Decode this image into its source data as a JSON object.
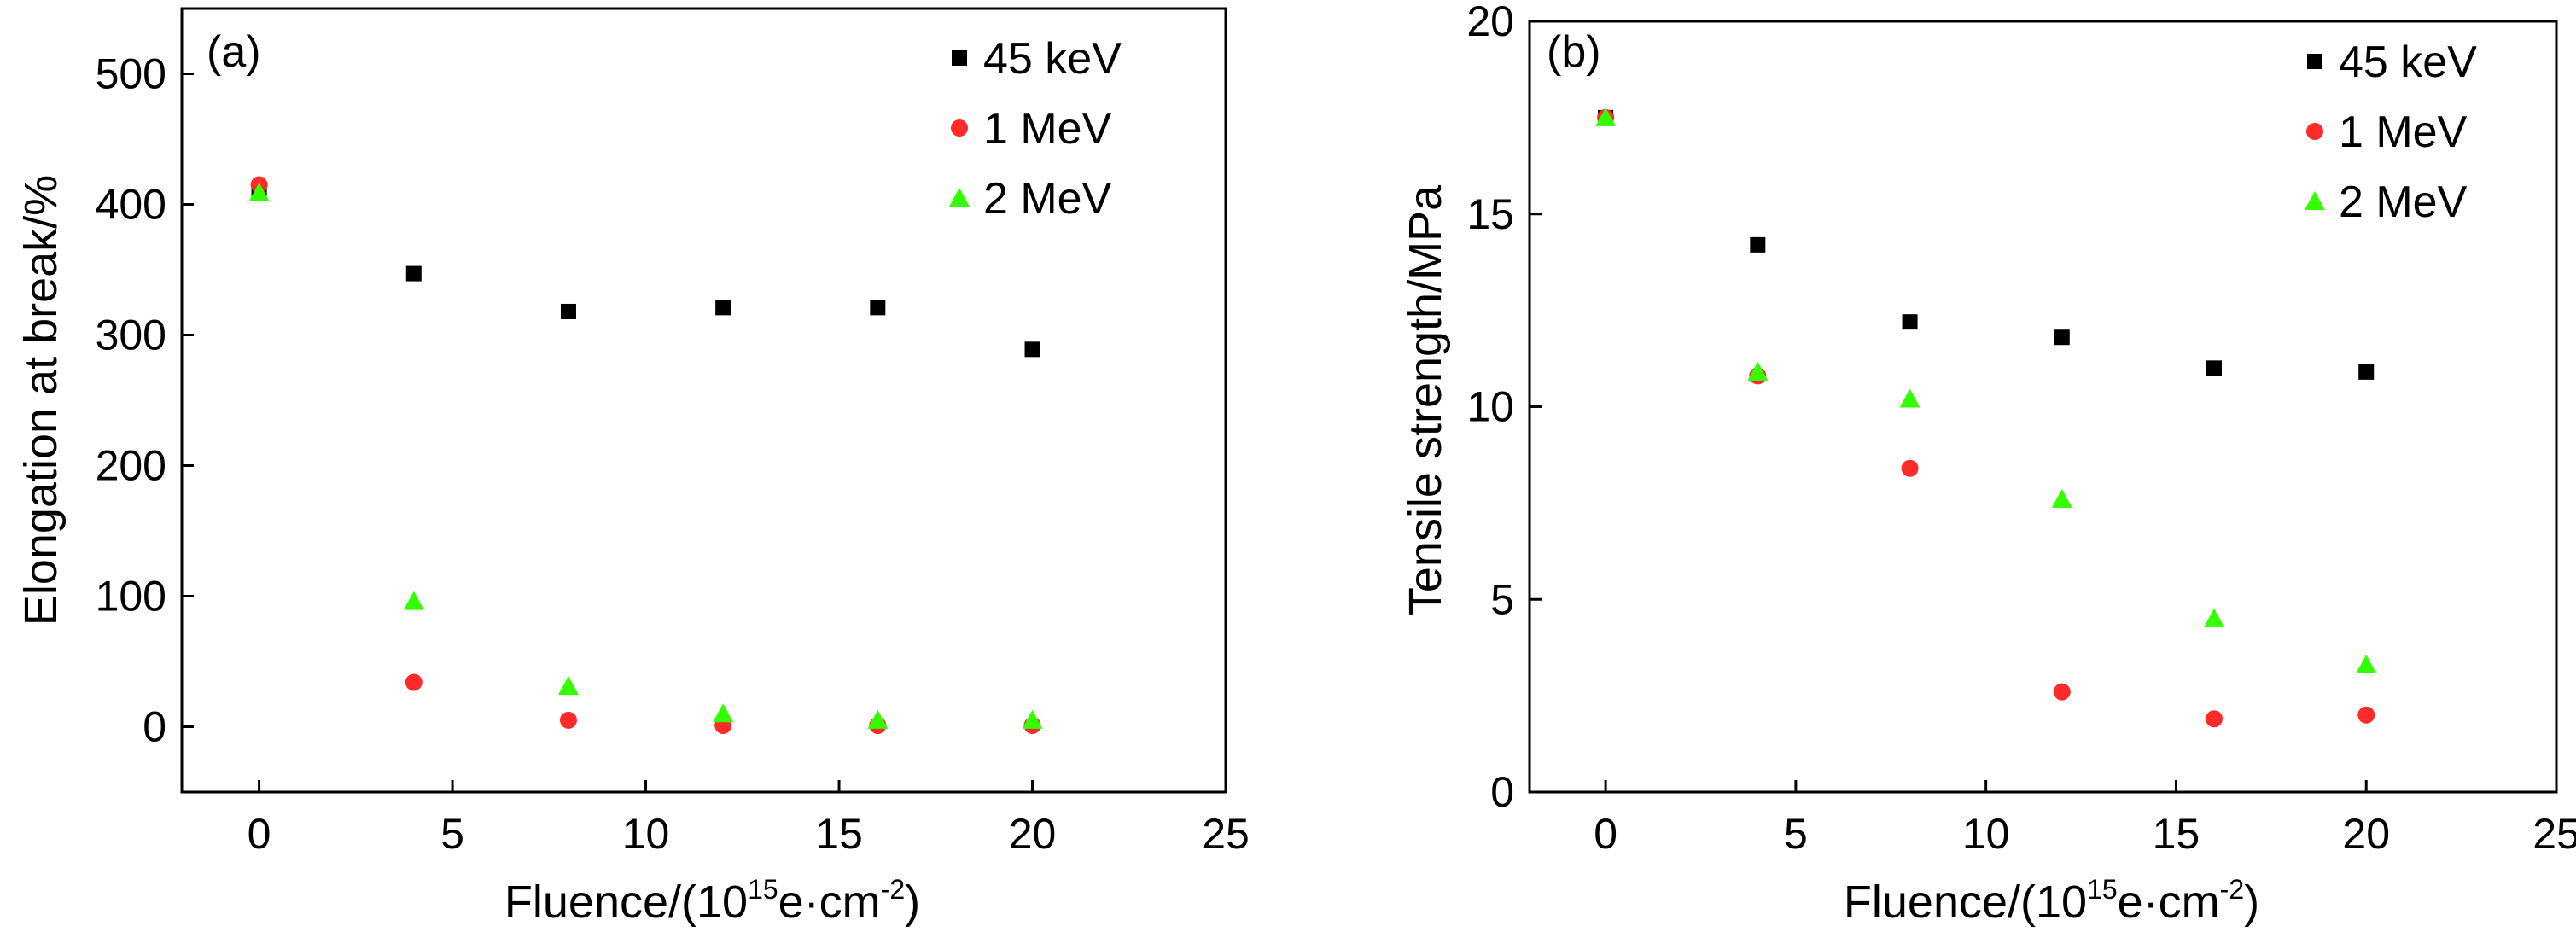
{
  "chart_data": [
    {
      "type": "scatter",
      "panel_label": "(a)",
      "xlabel": {
        "main": "Fluence/(10",
        "sup": "15",
        "unit": "e·cm",
        "unit_sup": "-2",
        "close": ")"
      },
      "ylabel": "Elongation at break/%",
      "xlim": [
        -2,
        25
      ],
      "ylim": [
        -50,
        550
      ],
      "xticks": [
        0,
        5,
        10,
        15,
        20,
        25
      ],
      "yticks": [
        0,
        100,
        200,
        300,
        400,
        500
      ],
      "grid": false,
      "legend_position": "top-right",
      "series": [
        {
          "name": "45 keV",
          "marker": "square",
          "color": "#000000",
          "x": [
            0,
            4,
            8,
            12,
            16,
            20
          ],
          "y": [
            412,
            347,
            318,
            321,
            321,
            289
          ]
        },
        {
          "name": "1 MeV",
          "marker": "circle",
          "color": "#ff2a2a",
          "x": [
            0,
            4,
            8,
            12,
            16,
            20
          ],
          "y": [
            415,
            34,
            5,
            1,
            1,
            1
          ]
        },
        {
          "name": "2 MeV",
          "marker": "triangle",
          "color": "#33ff00",
          "x": [
            0,
            4,
            8,
            12,
            16,
            20
          ],
          "y": [
            409,
            96,
            31,
            10,
            5,
            5
          ]
        }
      ]
    },
    {
      "type": "scatter",
      "panel_label": "(b)",
      "xlabel": {
        "main": "Fluence/(10",
        "sup": "15",
        "unit": "e·cm",
        "unit_sup": "-2",
        "close": ")"
      },
      "ylabel": "Tensile strength/MPa",
      "xlim": [
        -2,
        25
      ],
      "ylim": [
        0,
        20
      ],
      "xticks": [
        0,
        5,
        10,
        15,
        20,
        25
      ],
      "yticks": [
        0,
        5,
        10,
        15,
        20
      ],
      "grid": false,
      "legend_position": "top-right",
      "series": [
        {
          "name": "45 keV",
          "marker": "square",
          "color": "#000000",
          "x": [
            0,
            4,
            8,
            12,
            16,
            20
          ],
          "y": [
            17.5,
            14.2,
            12.2,
            11.8,
            11.0,
            10.9
          ]
        },
        {
          "name": "1 MeV",
          "marker": "circle",
          "color": "#ff2a2a",
          "x": [
            0,
            4,
            8,
            12,
            16,
            20
          ],
          "y": [
            17.5,
            10.8,
            8.4,
            2.6,
            1.9,
            2.0
          ]
        },
        {
          "name": "2 MeV",
          "marker": "triangle",
          "color": "#33ff00",
          "x": [
            0,
            4,
            8,
            12,
            16,
            20
          ],
          "y": [
            17.5,
            10.9,
            10.2,
            7.6,
            4.5,
            3.3
          ]
        }
      ]
    }
  ]
}
